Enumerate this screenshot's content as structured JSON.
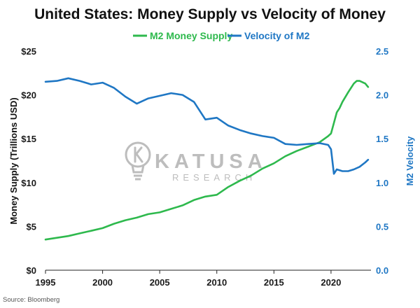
{
  "colors": {
    "m2": "#2eb94d",
    "velocity": "#1f77c4",
    "axis": "#222222",
    "watermark": "#bdbdbd"
  },
  "watermark": {
    "logo_icon": "lightbulb-k-icon",
    "main": "KATUSA",
    "sub": "RESEARCH"
  },
  "source": "Source: Bloomberg",
  "chart_data": {
    "type": "line",
    "title": "United States: Money Supply vs Velocity of Money",
    "ylabel": "Money Supply (Trillions USD)",
    "y2label": "M2 Velocity",
    "xlim": [
      1995,
      2023.5
    ],
    "ylim": [
      0,
      25
    ],
    "y2lim": [
      0,
      2.5
    ],
    "x_ticks": [
      "1995",
      "2000",
      "2005",
      "2010",
      "2015",
      "2020"
    ],
    "x_tick_values": [
      1995,
      2000,
      2005,
      2010,
      2015,
      2020
    ],
    "y_ticks": [
      "$0",
      "$5",
      "$10",
      "$15",
      "$20",
      "$25"
    ],
    "y_tick_values": [
      0,
      5,
      10,
      15,
      20,
      25
    ],
    "y2_ticks": [
      "0.0",
      "0.5",
      "1.0",
      "1.5",
      "2.0",
      "2.5"
    ],
    "y2_tick_values": [
      0,
      0.5,
      1.0,
      1.5,
      2.0,
      2.5
    ],
    "grid": false,
    "legend_position": "top-center",
    "series": [
      {
        "name": "M2 Money Supply",
        "axis": "left",
        "x": [
          1995,
          1996,
          1997,
          1998,
          1999,
          2000,
          2001,
          2002,
          2003,
          2004,
          2005,
          2006,
          2007,
          2008,
          2009,
          2010,
          2011,
          2012,
          2013,
          2014,
          2015,
          2016,
          2017,
          2018,
          2019,
          2019.75,
          2020.0,
          2020.25,
          2020.5,
          2020.75,
          2021.0,
          2021.5,
          2022.0,
          2022.25,
          2022.5,
          2023.0,
          2023.25
        ],
        "values": [
          3.5,
          3.7,
          3.9,
          4.2,
          4.5,
          4.8,
          5.3,
          5.7,
          6.0,
          6.4,
          6.6,
          7.0,
          7.4,
          8.0,
          8.4,
          8.6,
          9.5,
          10.2,
          10.8,
          11.6,
          12.2,
          13.0,
          13.6,
          14.1,
          14.6,
          15.3,
          15.6,
          16.8,
          18.0,
          18.5,
          19.2,
          20.3,
          21.3,
          21.6,
          21.6,
          21.3,
          20.9
        ]
      },
      {
        "name": "Velocity of M2",
        "axis": "right",
        "x": [
          1995,
          1996,
          1997,
          1998,
          1999,
          2000,
          2001,
          2002,
          2003,
          2004,
          2005,
          2006,
          2007,
          2008,
          2009,
          2010,
          2011,
          2012,
          2013,
          2014,
          2015,
          2016,
          2017,
          2018,
          2019,
          2019.75,
          2020.0,
          2020.25,
          2020.5,
          2021.0,
          2021.5,
          2022.0,
          2022.5,
          2023.0,
          2023.25
        ],
        "values": [
          2.15,
          2.16,
          2.19,
          2.16,
          2.12,
          2.14,
          2.08,
          1.98,
          1.9,
          1.96,
          1.99,
          2.02,
          2.0,
          1.92,
          1.72,
          1.74,
          1.65,
          1.6,
          1.56,
          1.53,
          1.51,
          1.44,
          1.43,
          1.44,
          1.45,
          1.43,
          1.38,
          1.1,
          1.15,
          1.13,
          1.13,
          1.15,
          1.18,
          1.23,
          1.26
        ]
      }
    ]
  }
}
